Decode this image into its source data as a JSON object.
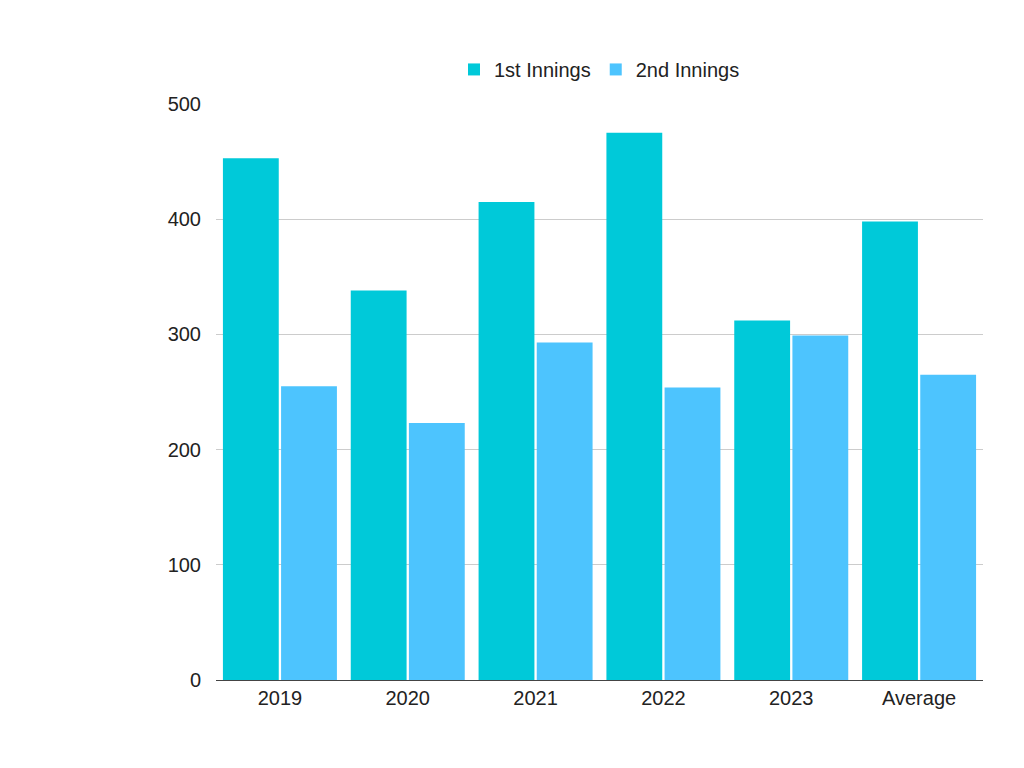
{
  "chart_data": {
    "type": "bar",
    "categories": [
      "2019",
      "2020",
      "2021",
      "2022",
      "2023",
      "Average"
    ],
    "series": [
      {
        "name": "1st Innings",
        "color": "#00c9d9",
        "values": [
          453,
          338,
          415,
          475,
          312,
          398
        ]
      },
      {
        "name": "2nd Innings",
        "color": "#4dc4fe",
        "values": [
          255,
          223,
          293,
          254,
          299,
          265
        ]
      }
    ],
    "ylim": [
      0,
      500
    ],
    "yticks": [
      0,
      100,
      200,
      300,
      400,
      500
    ],
    "grid": true,
    "legend": "top"
  }
}
